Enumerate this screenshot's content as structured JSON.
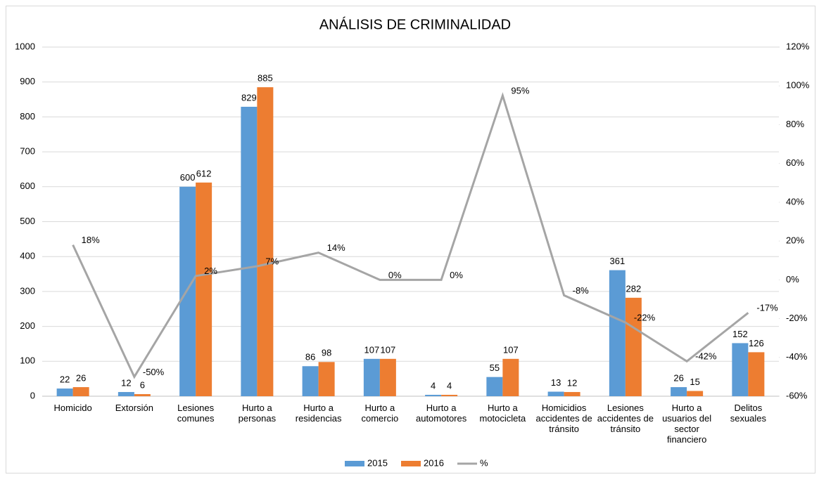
{
  "chart_data": {
    "type": "bar",
    "title": "ANÁLISIS DE CRIMINALIDAD",
    "categories": [
      "Homicido",
      "Extorsión",
      "Lesiones comunes",
      "Hurto a personas",
      "Hurto a residencias",
      "Hurto a comercio",
      "Hurto a automotores",
      "Hurto a motocicleta",
      "Homicidios accidentes de tránsito",
      "Lesiones accidentes de tránsito",
      "Hurto a usuarios del sector financiero",
      "Delitos sexuales"
    ],
    "series": [
      {
        "name": "2015",
        "type": "bar",
        "color": "#5b9bd5",
        "values": [
          22,
          12,
          600,
          829,
          86,
          107,
          4,
          55,
          13,
          361,
          26,
          152
        ]
      },
      {
        "name": "2016",
        "type": "bar",
        "color": "#ed7d31",
        "values": [
          26,
          6,
          612,
          885,
          98,
          107,
          4,
          107,
          12,
          282,
          15,
          126
        ]
      },
      {
        "name": "%",
        "type": "line",
        "axis": "y2",
        "color": "#a5a5a5",
        "values": [
          18,
          -50,
          2,
          7,
          14,
          0,
          0,
          95,
          -8,
          -22,
          -42,
          -17
        ],
        "value_labels": [
          "18%",
          "-50%",
          "2%",
          "7%",
          "14%",
          "0%",
          "0%",
          "95%",
          "-8%",
          "-22%",
          "-42%",
          "-17%"
        ]
      }
    ],
    "ylim": [
      0,
      1000
    ],
    "yticks": [
      0,
      100,
      200,
      300,
      400,
      500,
      600,
      700,
      800,
      900,
      1000
    ],
    "y2lim": [
      -60,
      120
    ],
    "y2ticks": [
      {
        "value": -60,
        "label": "-60%"
      },
      {
        "value": -40,
        "label": "-40%"
      },
      {
        "value": -20,
        "label": "-20%"
      },
      {
        "value": 0,
        "label": "0%"
      },
      {
        "value": 20,
        "label": "20%"
      },
      {
        "value": 40,
        "label": "40%"
      },
      {
        "value": 60,
        "label": "60%"
      },
      {
        "value": 80,
        "label": "80%"
      },
      {
        "value": 100,
        "label": "100%"
      },
      {
        "value": 120,
        "label": "120%"
      }
    ],
    "grid": true,
    "legend": "bottom"
  }
}
